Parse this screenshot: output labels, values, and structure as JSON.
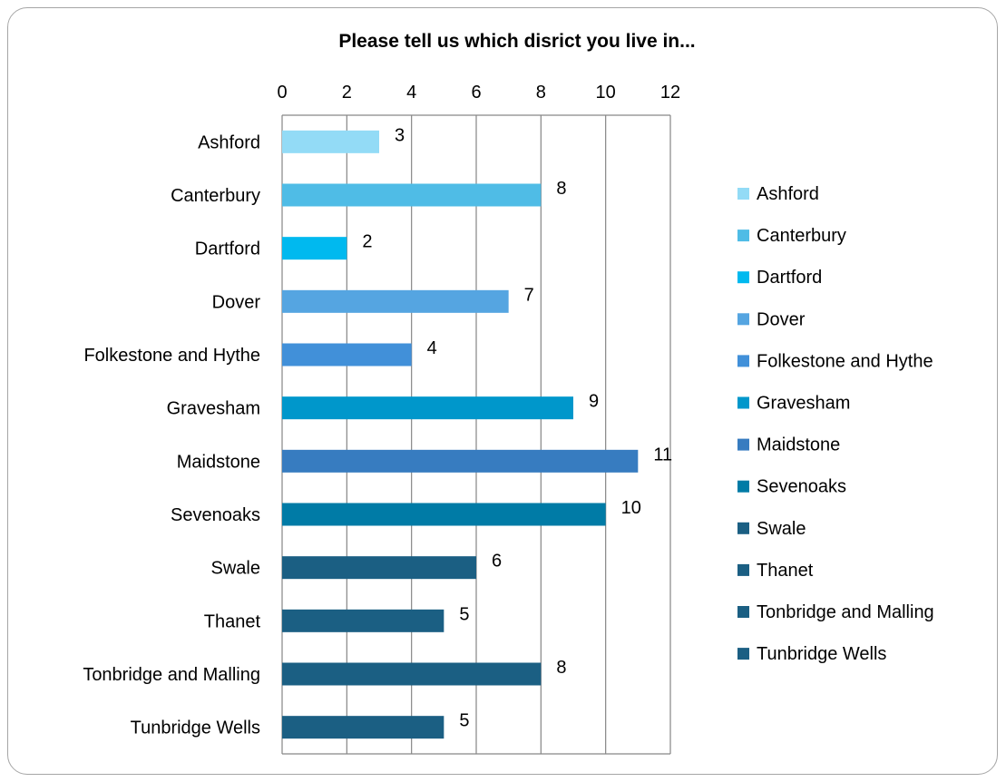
{
  "chart_data": {
    "type": "bar",
    "orientation": "horizontal",
    "title": "Please tell us which disrict you live in...",
    "xlabel": "",
    "ylabel": "",
    "xlim": [
      0,
      12
    ],
    "x_ticks": [
      0,
      2,
      4,
      6,
      8,
      10,
      12
    ],
    "x_axis_position": "top",
    "grid": true,
    "legend_placement": "right",
    "categories": [
      "Ashford",
      "Canterbury",
      "Dartford",
      "Dover",
      "Folkestone and Hythe",
      "Gravesham",
      "Maidstone",
      "Sevenoaks",
      "Swale",
      "Thanet",
      "Tonbridge and Malling",
      "Tunbridge Wells"
    ],
    "values": [
      3,
      8,
      2,
      7,
      4,
      9,
      11,
      10,
      6,
      5,
      8,
      5
    ],
    "colors": [
      "#93dbf6",
      "#4fbce6",
      "#00b9ef",
      "#55a5e1",
      "#4190d9",
      "#0097cb",
      "#377cc0",
      "#007ba6",
      "#1b5f83",
      "#1b5f83",
      "#1b5f83",
      "#1b5f83"
    ]
  }
}
